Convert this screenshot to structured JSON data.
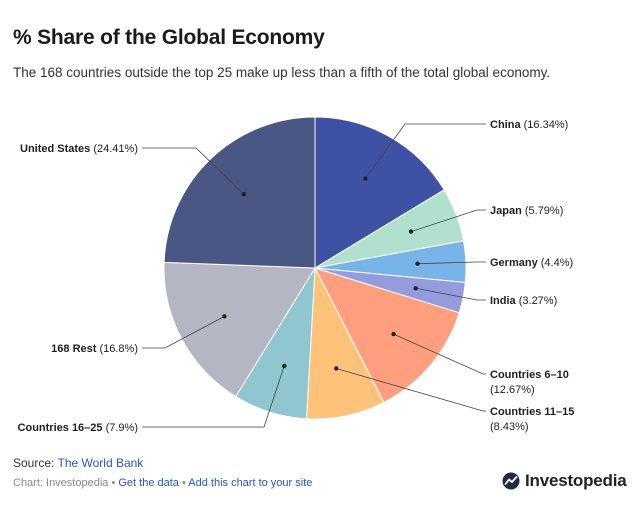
{
  "header": {
    "title": "% Share of the Global Economy",
    "subtitle": "The 168 countries outside the top 25 make up less than a fifth of the total global economy."
  },
  "chart_data": {
    "type": "pie",
    "title": "% Share of the Global Economy",
    "subtitle": "The 168 countries outside the top 25 make up less than a fifth of the total global economy.",
    "slices": [
      {
        "name": "China",
        "value": 16.34,
        "label_value": "(16.34%)",
        "color": "#3f51a3"
      },
      {
        "name": "Japan",
        "value": 5.79,
        "label_value": "(5.79%)",
        "color": "#b2e0cf"
      },
      {
        "name": "Germany",
        "value": 4.4,
        "label_value": "(4.4%)",
        "color": "#79b4e8"
      },
      {
        "name": "India",
        "value": 3.27,
        "label_value": "(3.27%)",
        "color": "#959cde"
      },
      {
        "name": "Countries 6–10",
        "value": 12.67,
        "label_value": "(12.67%)",
        "color": "#ff9f80"
      },
      {
        "name": "Countries 11–15",
        "value": 8.43,
        "label_value": "(8.43%)",
        "color": "#ffc27a"
      },
      {
        "name": "Countries 16–25",
        "value": 7.9,
        "label_value": "(7.9%)",
        "color": "#8fc6cf"
      },
      {
        "name": "168 Rest",
        "value": 16.8,
        "label_value": "(16.8%)",
        "color": "#b4b6c4"
      },
      {
        "name": "United States",
        "value": 24.41,
        "label_value": "(24.41%)",
        "color": "#4a5684"
      }
    ],
    "start_angle": "top",
    "direction": "clockwise"
  },
  "footer": {
    "source_prefix": "Source: ",
    "source_link": "The World Bank",
    "credit_prefix": "Chart: Investopedia",
    "separator": " • ",
    "get_data": "Get the data",
    "add_chart": "Add this chart to your site",
    "brand": "Investopedia"
  }
}
